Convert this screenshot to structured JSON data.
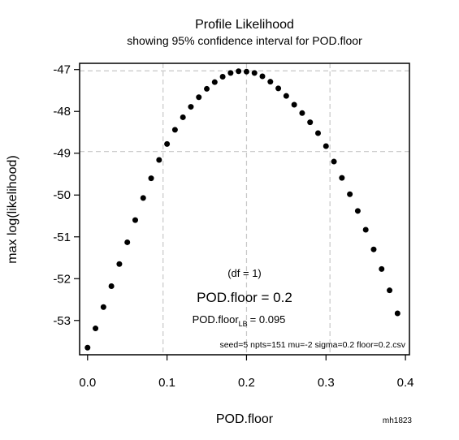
{
  "chart_data": {
    "type": "scatter",
    "title": "Profile Likelihood",
    "subtitle": "showing 95% confidence interval for POD.floor",
    "xlabel": "POD.floor",
    "ylabel": "max log(likelihood)",
    "xlim": [
      -0.01,
      0.405
    ],
    "ylim": [
      -53.82,
      -46.85
    ],
    "xticks": [
      0.0,
      0.1,
      0.2,
      0.3,
      0.4
    ],
    "xtick_labels": [
      "0.0",
      "0.1",
      "0.2",
      "0.3",
      "0.4"
    ],
    "yticks": [
      -47,
      -48,
      -49,
      -50,
      -51,
      -52,
      -53
    ],
    "ytick_labels": [
      "-47",
      "-48",
      "-49",
      "-50",
      "-51",
      "-52",
      "-53"
    ],
    "grid": false,
    "reference_lines": {
      "horizontal": [
        -47.03,
        -48.96
      ],
      "vertical": [
        0.095,
        0.2,
        0.305
      ]
    },
    "points": {
      "x": [
        0.0,
        0.01,
        0.02,
        0.03,
        0.04,
        0.05,
        0.06,
        0.07,
        0.08,
        0.09,
        0.1,
        0.11,
        0.12,
        0.13,
        0.14,
        0.15,
        0.16,
        0.17,
        0.18,
        0.19,
        0.2,
        0.21,
        0.22,
        0.23,
        0.24,
        0.25,
        0.26,
        0.27,
        0.28,
        0.29,
        0.3,
        0.31,
        0.32,
        0.33,
        0.34,
        0.35,
        0.36,
        0.37,
        0.38,
        0.39
      ],
      "y": [
        -53.65,
        -53.19,
        -52.68,
        -52.18,
        -51.65,
        -51.13,
        -50.6,
        -50.07,
        -49.6,
        -49.16,
        -48.78,
        -48.44,
        -48.14,
        -47.89,
        -47.66,
        -47.46,
        -47.3,
        -47.17,
        -47.08,
        -47.04,
        -47.05,
        -47.08,
        -47.16,
        -47.29,
        -47.45,
        -47.63,
        -47.84,
        -48.04,
        -48.26,
        -48.52,
        -48.83,
        -49.2,
        -49.59,
        -49.98,
        -50.38,
        -50.83,
        -51.3,
        -51.77,
        -52.28,
        -52.83
      ]
    },
    "annotations": {
      "df": "(df = 1)",
      "estimate": "POD.floor = 0.2",
      "lower_bound_prefix": "POD.floor",
      "lower_bound_subscript": "LB",
      "lower_bound_value": "= 0.095",
      "settings": "seed=5 npts=151 mu=-2 sigma=0.2 floor=0.2.csv"
    },
    "footer_tag": "mh1823"
  }
}
